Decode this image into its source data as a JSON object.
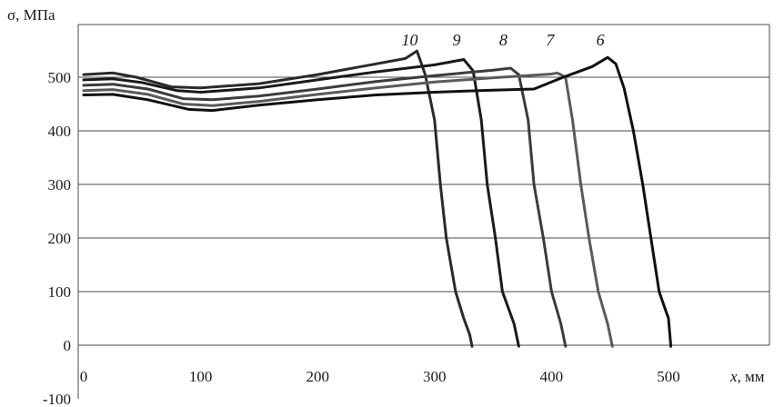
{
  "chart_data": {
    "type": "line",
    "xlabel_main": "x",
    "xlabel_unit": ", мм",
    "ylabel": "σ, МПа",
    "xlim": [
      -5,
      520
    ],
    "ylim": [
      -100,
      600
    ],
    "x_ticks": [
      "0",
      "100",
      "200",
      "300",
      "400",
      "500"
    ],
    "y_ticks": [
      "500",
      "400",
      "300",
      "200",
      "100",
      "0",
      "-100"
    ],
    "grid": true,
    "series": [
      {
        "name": "10",
        "color": "#2a2a2a",
        "points": [
          [
            0,
            505
          ],
          [
            25,
            508
          ],
          [
            45,
            500
          ],
          [
            75,
            482
          ],
          [
            100,
            480
          ],
          [
            150,
            488
          ],
          [
            200,
            505
          ],
          [
            250,
            525
          ],
          [
            275,
            535
          ],
          [
            285,
            549
          ],
          [
            292,
            505
          ],
          [
            300,
            420
          ],
          [
            305,
            300
          ],
          [
            310,
            200
          ],
          [
            318,
            100
          ],
          [
            325,
            50
          ],
          [
            330,
            20
          ],
          [
            332,
            -2
          ]
        ]
      },
      {
        "name": "9",
        "color": "#1a1a1a",
        "points": [
          [
            0,
            495
          ],
          [
            25,
            497
          ],
          [
            50,
            490
          ],
          [
            80,
            475
          ],
          [
            100,
            472
          ],
          [
            150,
            480
          ],
          [
            200,
            495
          ],
          [
            250,
            510
          ],
          [
            300,
            523
          ],
          [
            325,
            533
          ],
          [
            333,
            512
          ],
          [
            340,
            420
          ],
          [
            345,
            300
          ],
          [
            352,
            200
          ],
          [
            358,
            100
          ],
          [
            368,
            40
          ],
          [
            372,
            -2
          ]
        ]
      },
      {
        "name": "8",
        "color": "#3c3c3c",
        "points": [
          [
            0,
            485
          ],
          [
            25,
            487
          ],
          [
            55,
            478
          ],
          [
            85,
            460
          ],
          [
            110,
            458
          ],
          [
            150,
            465
          ],
          [
            200,
            478
          ],
          [
            250,
            492
          ],
          [
            300,
            503
          ],
          [
            350,
            513
          ],
          [
            365,
            517
          ],
          [
            372,
            505
          ],
          [
            380,
            420
          ],
          [
            385,
            300
          ],
          [
            393,
            200
          ],
          [
            400,
            100
          ],
          [
            408,
            40
          ],
          [
            412,
            -2
          ]
        ]
      },
      {
        "name": "7",
        "color": "#5a5a5a",
        "points": [
          [
            0,
            475
          ],
          [
            25,
            477
          ],
          [
            55,
            468
          ],
          [
            85,
            450
          ],
          [
            110,
            447
          ],
          [
            150,
            455
          ],
          [
            200,
            468
          ],
          [
            250,
            480
          ],
          [
            300,
            491
          ],
          [
            350,
            499
          ],
          [
            400,
            506
          ],
          [
            405,
            508
          ],
          [
            412,
            500
          ],
          [
            418,
            420
          ],
          [
            425,
            300
          ],
          [
            432,
            200
          ],
          [
            440,
            100
          ],
          [
            448,
            40
          ],
          [
            452,
            -2
          ]
        ]
      },
      {
        "name": "6",
        "color": "#101010",
        "points": [
          [
            0,
            467
          ],
          [
            25,
            468
          ],
          [
            55,
            458
          ],
          [
            90,
            440
          ],
          [
            110,
            438
          ],
          [
            150,
            448
          ],
          [
            200,
            458
          ],
          [
            250,
            467
          ],
          [
            300,
            472
          ],
          [
            350,
            476
          ],
          [
            385,
            478
          ],
          [
            410,
            500
          ],
          [
            435,
            520
          ],
          [
            448,
            537
          ],
          [
            455,
            525
          ],
          [
            462,
            480
          ],
          [
            470,
            400
          ],
          [
            478,
            300
          ],
          [
            485,
            200
          ],
          [
            492,
            100
          ],
          [
            500,
            50
          ],
          [
            502,
            -2
          ]
        ]
      }
    ]
  }
}
